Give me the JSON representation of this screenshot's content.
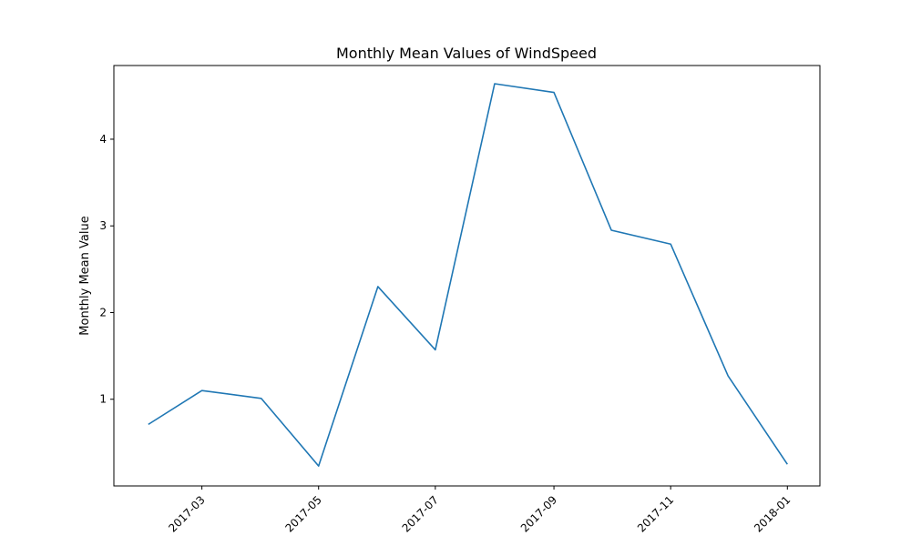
{
  "chart_data": {
    "type": "line",
    "title": "Monthly Mean Values of WindSpeed",
    "xlabel": "",
    "ylabel": "Monthly Mean Value",
    "x": [
      "2017-02-01",
      "2017-03-01",
      "2017-04-01",
      "2017-05-01",
      "2017-06-01",
      "2017-07-01",
      "2017-08-01",
      "2017-09-01",
      "2017-10-01",
      "2017-11-01",
      "2017-12-01",
      "2018-01-01"
    ],
    "series": [
      {
        "values": [
          0.71,
          1.1,
          1.01,
          0.23,
          2.3,
          1.57,
          4.64,
          4.54,
          2.95,
          2.79,
          1.27,
          0.25
        ]
      }
    ],
    "xticks": [
      "2017-03",
      "2017-05",
      "2017-07",
      "2017-09",
      "2017-11",
      "2018-01"
    ],
    "xlim": [
      "2017-01-14",
      "2018-01-18"
    ],
    "yticks": [
      "1",
      "2",
      "3",
      "4"
    ],
    "ylim": [
      0.0,
      4.85
    ],
    "grid": false,
    "line_color": "#1f77b4"
  }
}
